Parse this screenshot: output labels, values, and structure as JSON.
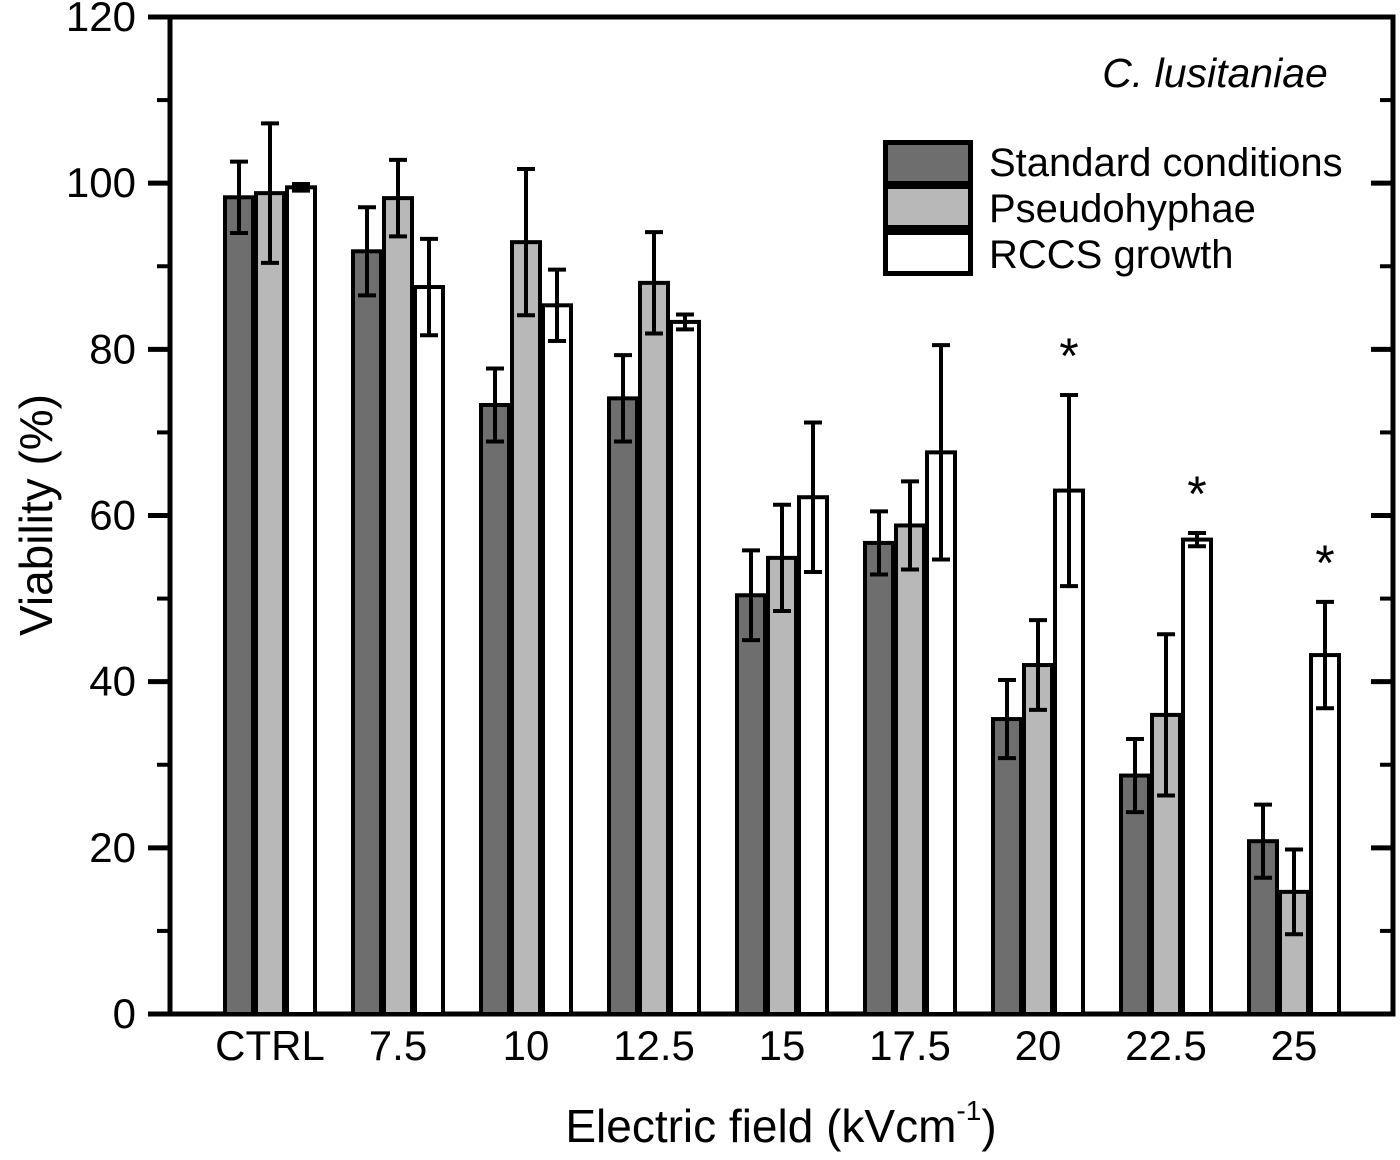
{
  "chart_data": {
    "type": "bar",
    "annotation": "C. lusitaniae",
    "ylabel": "Viability (%)",
    "xlabel": {
      "prefix": "Electric field (kVcm",
      "sup": "-1",
      "suffix": ")"
    },
    "ylim": [
      0,
      120
    ],
    "ytick_major": 20,
    "ytick_minor": 10,
    "grid": false,
    "legend_position": "upper right inside",
    "bar_edge_color": "#000000",
    "axis_color": "#000000",
    "categories": [
      "CTRL",
      "7.5",
      "10",
      "12.5",
      "15",
      "17.5",
      "20",
      "22.5",
      "25"
    ],
    "series": [
      {
        "name": "Standard conditions",
        "color": "#6e6e6e",
        "values": [
          98.3,
          91.8,
          73.3,
          74.1,
          50.4,
          56.7,
          35.5,
          28.7,
          20.8
        ],
        "errors": [
          4.3,
          5.3,
          4.4,
          5.2,
          5.4,
          3.8,
          4.7,
          4.4,
          4.4
        ]
      },
      {
        "name": "Pseudohyphae",
        "color": "#b8b8b8",
        "values": [
          98.8,
          98.2,
          92.9,
          88.0,
          54.9,
          58.8,
          42.0,
          36.0,
          14.7
        ],
        "errors": [
          8.4,
          4.6,
          8.8,
          6.1,
          6.4,
          5.3,
          5.4,
          9.7,
          5.1
        ]
      },
      {
        "name": "RCCS growth",
        "color": "#ffffff",
        "values": [
          99.5,
          87.5,
          85.3,
          83.3,
          62.2,
          67.6,
          63.0,
          57.1,
          43.2
        ],
        "errors": [
          0.4,
          5.8,
          4.3,
          0.9,
          9.0,
          12.9,
          11.5,
          0.8,
          6.4
        ]
      }
    ],
    "significance": {
      "symbol": "*",
      "series": "RCCS growth",
      "categories": [
        "20",
        "22.5",
        "25"
      ]
    }
  }
}
